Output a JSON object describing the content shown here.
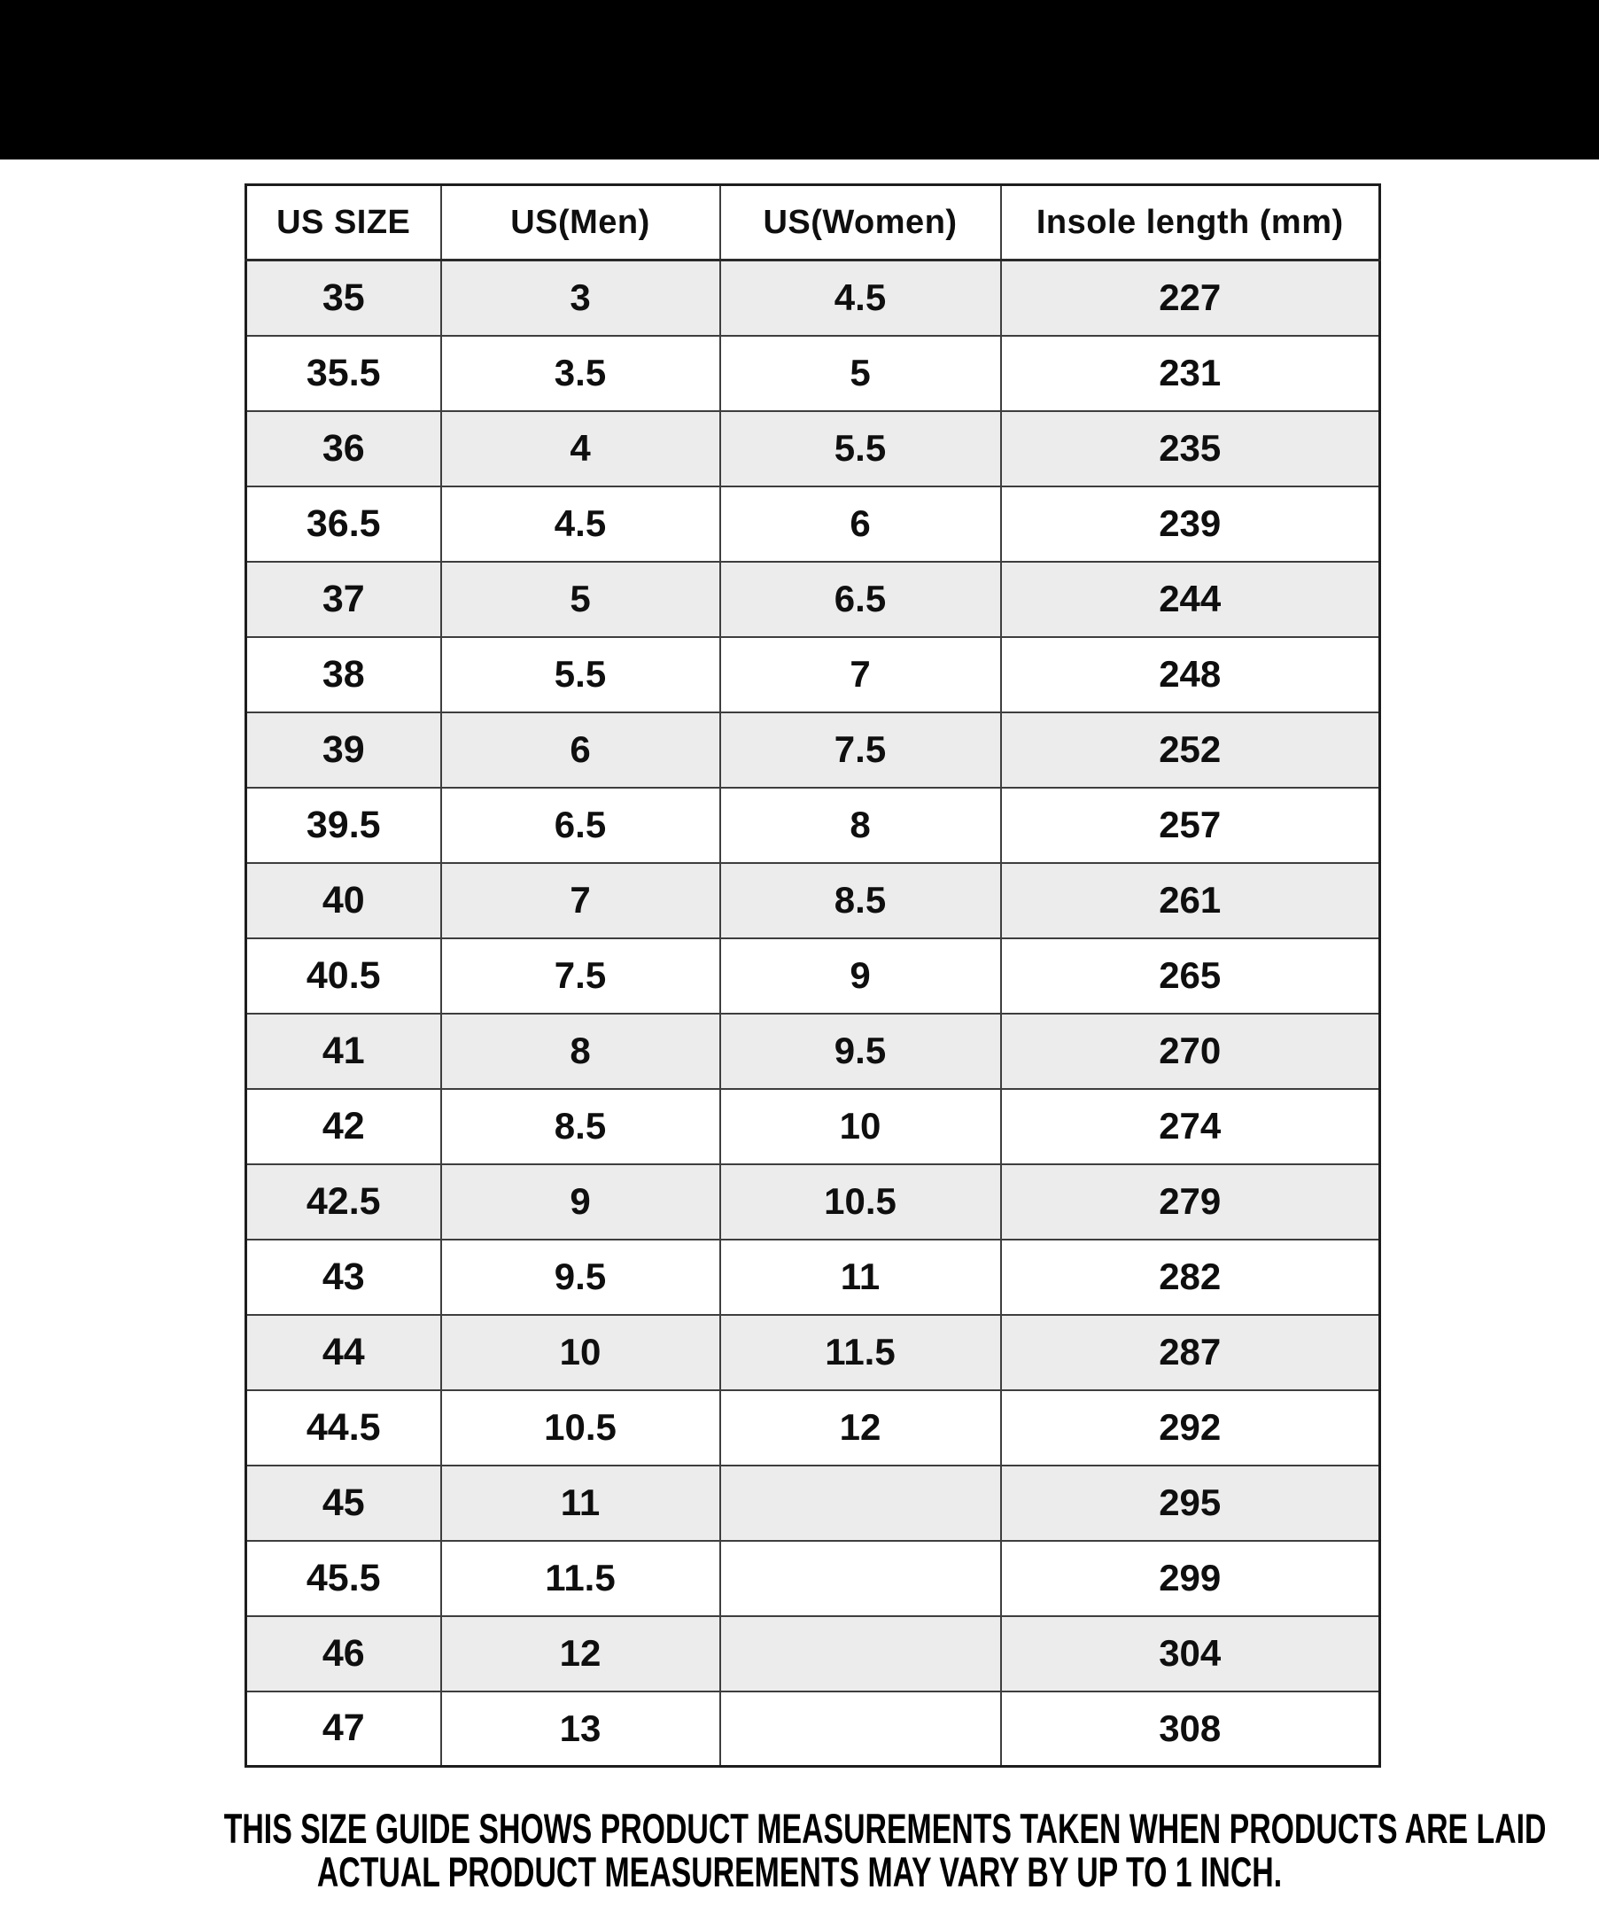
{
  "banner": {
    "present": "solid black bar"
  },
  "table": {
    "columns": [
      "US SIZE",
      "US(Men)",
      "US(Women)",
      "Insole length (mm)"
    ],
    "column_keys": [
      "us-size",
      "us-men",
      "us-women",
      "insole-length"
    ],
    "rows": [
      [
        "35",
        "3",
        "4.5",
        "227"
      ],
      [
        "35.5",
        "3.5",
        "5",
        "231"
      ],
      [
        "36",
        "4",
        "5.5",
        "235"
      ],
      [
        "36.5",
        "4.5",
        "6",
        "239"
      ],
      [
        "37",
        "5",
        "6.5",
        "244"
      ],
      [
        "38",
        "5.5",
        "7",
        "248"
      ],
      [
        "39",
        "6",
        "7.5",
        "252"
      ],
      [
        "39.5",
        "6.5",
        "8",
        "257"
      ],
      [
        "40",
        "7",
        "8.5",
        "261"
      ],
      [
        "40.5",
        "7.5",
        "9",
        "265"
      ],
      [
        "41",
        "8",
        "9.5",
        "270"
      ],
      [
        "42",
        "8.5",
        "10",
        "274"
      ],
      [
        "42.5",
        "9",
        "10.5",
        "279"
      ],
      [
        "43",
        "9.5",
        "11",
        "282"
      ],
      [
        "44",
        "10",
        "11.5",
        "287"
      ],
      [
        "44.5",
        "10.5",
        "12",
        "292"
      ],
      [
        "45",
        "11",
        "",
        "295"
      ],
      [
        "45.5",
        "11.5",
        "",
        "299"
      ],
      [
        "46",
        "12",
        "",
        "304"
      ],
      [
        "47",
        "13",
        "",
        "308"
      ]
    ]
  },
  "footer": {
    "line1": "THIS SIZE GUIDE SHOWS PRODUCT MEASUREMENTS TAKEN WHEN PRODUCTS ARE LAID",
    "line2": "ACTUAL PRODUCT MEASUREMENTS MAY VARY BY UP TO 1 INCH."
  },
  "colors": {
    "banner": "#000000",
    "row_alternate": "#ececec",
    "grid_border": "#3e3e3e",
    "outer_border": "#1d1d1d",
    "text": "#0f0f0f",
    "background": "#ffffff"
  }
}
